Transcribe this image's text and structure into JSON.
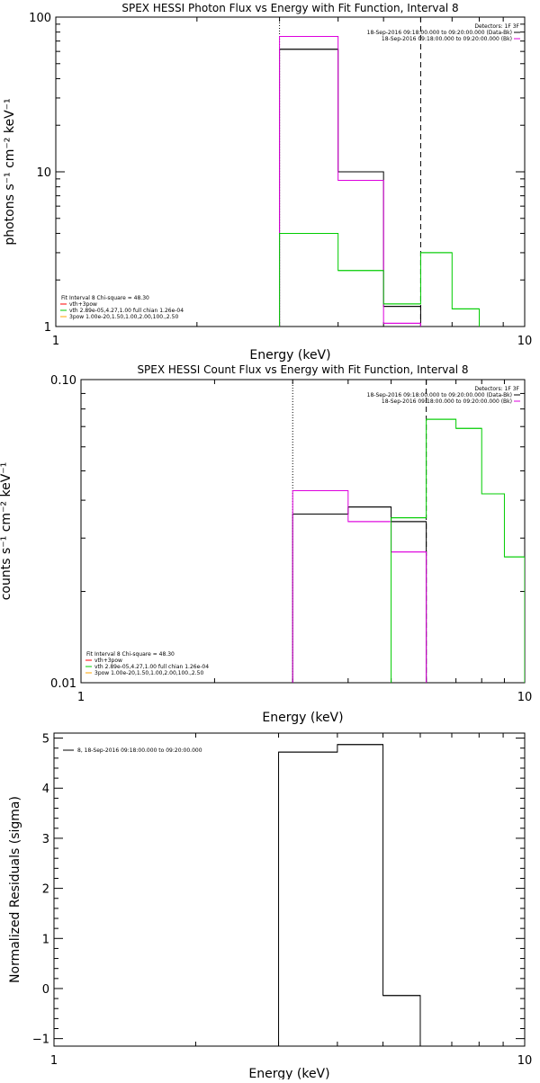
{
  "chart_data": [
    {
      "type": "line",
      "title": "SPEX HESSI Photon Flux vs Energy with Fit Function, Interval 8",
      "xlabel": "Energy (keV)",
      "ylabel": "photons s⁻¹ cm⁻² keV⁻¹",
      "xscale": "log",
      "yscale": "log",
      "xlim": [
        1,
        10
      ],
      "ylim": [
        1,
        100
      ],
      "xticks": [
        {
          "v": 1,
          "label": "1"
        },
        {
          "v": 10,
          "label": "10"
        }
      ],
      "yticks": [
        {
          "v": 1,
          "label": "1"
        },
        {
          "v": 10,
          "label": "10"
        },
        {
          "v": 100,
          "label": "100"
        }
      ],
      "vlines": [
        {
          "x": 3.0,
          "style": "dotted"
        },
        {
          "x": 6.0,
          "style": "dashed"
        }
      ],
      "legend_topright": [
        {
          "text": "Detectors: 1F 3F",
          "color": "#000000"
        },
        {
          "text": "18-Sep-2016 09:18:00.000 to 09:20:00.000 (Data-Bk)",
          "color": "#000000"
        },
        {
          "text": "18-Sep-2016 09:18:00.000 to 09:20:00.000 (Bk)",
          "color": "#dd00dd"
        }
      ],
      "legend_bottomleft": [
        {
          "text": "Fit Interval  8    Chi-square = 48.30",
          "color": "#000000"
        },
        {
          "text": "vth+3pow",
          "color": "#ff0000"
        },
        {
          "text": "vth 2.89e-05,4.27,1.00  full chian 1.26e-04",
          "color": "#00cc00"
        },
        {
          "text": "3pow 1.00e-20,1.50,1.00,2.00,100.,2.50",
          "color": "#ffa500"
        }
      ],
      "series": [
        {
          "color": "#000000",
          "bins": [
            [
              3.0,
              4.0,
              62
            ],
            [
              4.0,
              5.0,
              10
            ],
            [
              5.0,
              6.0,
              1.35
            ]
          ]
        },
        {
          "color": "#dd00dd",
          "bins": [
            [
              3.0,
              4.0,
              75
            ],
            [
              4.0,
              5.0,
              8.8
            ],
            [
              5.0,
              6.0,
              1.05
            ]
          ]
        },
        {
          "color": "#00cc00",
          "bins": [
            [
              3.0,
              4.0,
              4.0
            ],
            [
              4.0,
              5.0,
              2.3
            ],
            [
              5.0,
              6.0,
              1.4
            ],
            [
              6.0,
              7.0,
              3.0
            ],
            [
              7.0,
              8.0,
              1.3
            ]
          ]
        }
      ]
    },
    {
      "type": "line",
      "title": "SPEX HESSI Count Flux vs Energy with Fit Function, Interval 8",
      "xlabel": "Energy (keV)",
      "ylabel": "counts s⁻¹ cm⁻² keV⁻¹",
      "xscale": "log",
      "yscale": "log",
      "xlim": [
        1,
        10
      ],
      "ylim": [
        0.01,
        0.1
      ],
      "xticks": [
        {
          "v": 1,
          "label": "1"
        },
        {
          "v": 10,
          "label": "10"
        }
      ],
      "yticks": [
        {
          "v": 0.01,
          "label": "0.01"
        },
        {
          "v": 0.1,
          "label": "0.10"
        }
      ],
      "vlines": [
        {
          "x": 3.0,
          "style": "dotted"
        },
        {
          "x": 6.0,
          "style": "dashed"
        }
      ],
      "legend_topright": [
        {
          "text": "Detectors: 1F 3F",
          "color": "#000000"
        },
        {
          "text": "18-Sep-2016 09:18:00.000 to 09:20:00.000 (Data-Bk)",
          "color": "#000000"
        },
        {
          "text": "18-Sep-2016 09:18:00.000 to 09:20:00.000 (Bk)",
          "color": "#dd00dd"
        }
      ],
      "legend_bottomleft": [
        {
          "text": "Fit Interval  8    Chi-square = 48.30",
          "color": "#000000"
        },
        {
          "text": "vth+3pow",
          "color": "#ff0000"
        },
        {
          "text": "vth 2.89e-05,4.27,1.00  full chian 1.26e-04",
          "color": "#00cc00"
        },
        {
          "text": "3pow 1.00e-20,1.50,1.00,2.00,100.,2.50",
          "color": "#ffa500"
        }
      ],
      "series": [
        {
          "color": "#000000",
          "bins": [
            [
              3.0,
              4.0,
              0.036
            ],
            [
              4.0,
              5.0,
              0.038
            ],
            [
              5.0,
              6.0,
              0.034
            ]
          ]
        },
        {
          "color": "#dd00dd",
          "bins": [
            [
              3.0,
              4.0,
              0.043
            ],
            [
              4.0,
              5.0,
              0.034
            ],
            [
              5.0,
              6.0,
              0.027
            ]
          ]
        },
        {
          "color": "#00cc00",
          "bins": [
            [
              5.0,
              6.0,
              0.035
            ],
            [
              6.0,
              7.0,
              0.074
            ],
            [
              7.0,
              8.0,
              0.069
            ],
            [
              8.0,
              9.0,
              0.042
            ],
            [
              9.0,
              10.0,
              0.026
            ]
          ]
        }
      ]
    },
    {
      "type": "line",
      "title": "",
      "xlabel": "Energy (keV)",
      "ylabel": "Normalized Residuals (sigma)",
      "xscale": "log",
      "yscale": "linear",
      "xlim": [
        1,
        10
      ],
      "ylim": [
        -1.15,
        5.1
      ],
      "xticks": [
        {
          "v": 1,
          "label": "1"
        },
        {
          "v": 10,
          "label": "10"
        }
      ],
      "yticks": [
        {
          "v": -1,
          "label": "−1"
        },
        {
          "v": 0,
          "label": "0"
        },
        {
          "v": 1,
          "label": "1"
        },
        {
          "v": 2,
          "label": "2"
        },
        {
          "v": 3,
          "label": "3"
        },
        {
          "v": 4,
          "label": "4"
        },
        {
          "v": 5,
          "label": "5"
        }
      ],
      "vlines": [],
      "legend_topleft": [
        {
          "text": "8, 18-Sep-2016 09:18:00.000 to 09:20:00.000",
          "color": "#000000"
        }
      ],
      "series": [
        {
          "color": "#000000",
          "bins": [
            [
              3.0,
              4.0,
              4.72
            ],
            [
              4.0,
              5.0,
              4.87
            ],
            [
              5.0,
              6.0,
              -0.14
            ]
          ]
        }
      ]
    }
  ]
}
